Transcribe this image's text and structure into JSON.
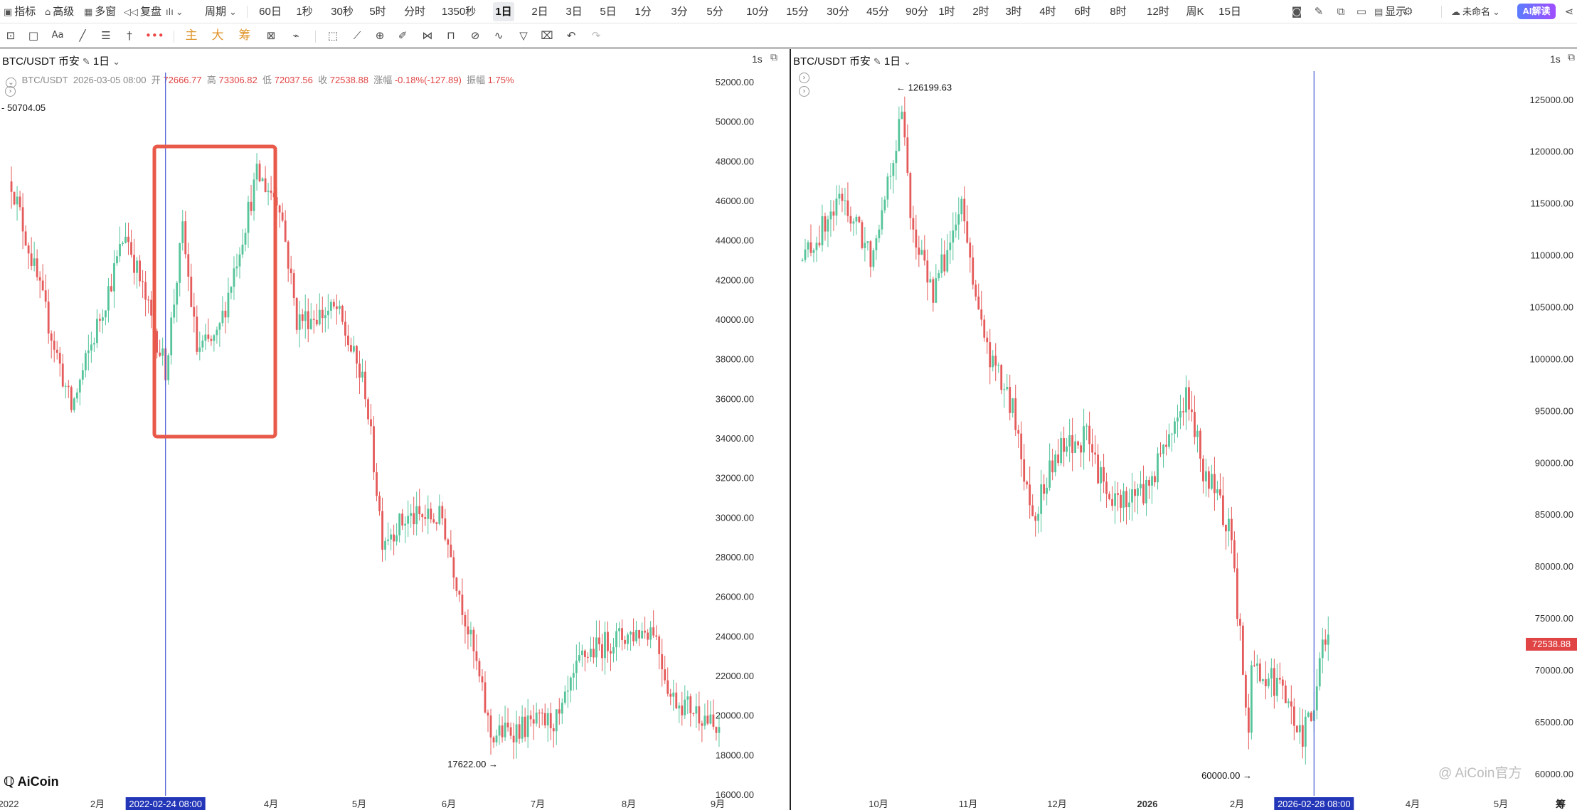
{
  "toolbar": {
    "indicators": "指标",
    "advanced": "高级",
    "multi_window": "多窗",
    "replay": "复盘",
    "period": "周期",
    "intervals": [
      "60日",
      "1秒",
      "30秒",
      "5时",
      "分时",
      "1350秒",
      "1日",
      "2日",
      "3日",
      "5日",
      "1分",
      "3分",
      "5分",
      "10分",
      "15分",
      "30分",
      "45分",
      "90分",
      "1时",
      "2时",
      "3时",
      "4时",
      "6时",
      "8时",
      "12时",
      "周K",
      "15日"
    ],
    "active_interval": "1日",
    "display": "显示",
    "layout_name": "未命名",
    "ai_label": "AI解读"
  },
  "draw_toolbar": {
    "main": "主",
    "large": "大",
    "chips": "筹",
    "text_tool": "Aa"
  },
  "left_chart": {
    "title": "BTC/USDT 币安",
    "interval": "1日",
    "corner_interval": "1s",
    "ohlc": {
      "symbol": "BTC/USDT",
      "datetime": "2026-03-05 08:00",
      "open_label": "开",
      "open": "72666.77",
      "high_label": "高",
      "high": "73306.82",
      "low_label": "低",
      "low": "72037.56",
      "close_label": "收",
      "close": "72538.88",
      "change_label": "涨幅",
      "change": "-0.18%(-127.89)",
      "amplitude_label": "振幅",
      "amplitude": "1.75%"
    },
    "high_marker": "50704.05",
    "low_marker": "17622.00",
    "crosshair_date": "2022-02-24 08:00",
    "year_label": "2022",
    "x_labels": [
      "2月",
      "4月",
      "5月",
      "6月",
      "7月",
      "8月",
      "9月"
    ],
    "y_ticks": [
      "52000.00",
      "50000.00",
      "48000.00",
      "46000.00",
      "44000.00",
      "42000.00",
      "40000.00",
      "38000.00",
      "36000.00",
      "34000.00",
      "32000.00",
      "30000.00",
      "28000.00",
      "26000.00",
      "24000.00",
      "22000.00",
      "20000.00",
      "18000.00",
      "16000.00"
    ],
    "logo": "AiCoin"
  },
  "right_chart": {
    "title": "BTC/USDT 币安",
    "interval": "1日",
    "corner_interval": "1s",
    "high_marker": "126199.63",
    "low_marker": "60000.00",
    "last_price": "72538.88",
    "crosshair_date": "2026-02-28 08:00",
    "x_labels": [
      "10月",
      "11月",
      "12月",
      "2026",
      "2月",
      "4月",
      "5月"
    ],
    "y_ticks": [
      "125000.00",
      "120000.00",
      "115000.00",
      "110000.00",
      "105000.00",
      "100000.00",
      "95000.00",
      "90000.00",
      "85000.00",
      "80000.00",
      "75000.00",
      "70000.00",
      "65000.00",
      "60000.00"
    ],
    "watermark": "@ AiCoin官方",
    "corner_text": "筹 周"
  },
  "chart_data": [
    {
      "type": "candlestick",
      "title": "BTC/USDT 币安",
      "interval": "1日",
      "ylim": [
        16000,
        52000
      ],
      "x_range": [
        "2022-01",
        "2022-09"
      ],
      "path_close": [
        [
          "2022-01-01",
          47000
        ],
        [
          "2022-01-10",
          42000
        ],
        [
          "2022-01-22",
          35500
        ],
        [
          "2022-02-05",
          42000
        ],
        [
          "2022-02-10",
          44500
        ],
        [
          "2022-02-24",
          37500
        ],
        [
          "2022-03-02",
          44500
        ],
        [
          "2022-03-07",
          38500
        ],
        [
          "2022-03-14",
          39000
        ],
        [
          "2022-03-28",
          47300
        ],
        [
          "2022-04-05",
          46000
        ],
        [
          "2022-04-11",
          40000
        ],
        [
          "2022-04-25",
          40500
        ],
        [
          "2022-05-05",
          36500
        ],
        [
          "2022-05-11",
          29000
        ],
        [
          "2022-05-20",
          30000
        ],
        [
          "2022-06-01",
          30000
        ],
        [
          "2022-06-13",
          22500
        ],
        [
          "2022-06-18",
          19000
        ],
        [
          "2022-07-01",
          19500
        ],
        [
          "2022-07-12",
          19800
        ],
        [
          "2022-07-20",
          23000
        ],
        [
          "2022-07-30",
          23800
        ],
        [
          "2022-08-14",
          24500
        ],
        [
          "2022-08-20",
          21000
        ],
        [
          "2022-09-01",
          20000
        ],
        [
          "2022-09-06",
          18900
        ]
      ],
      "annotations": {
        "high": 50704.05,
        "low": 17622.0
      }
    },
    {
      "type": "candlestick",
      "title": "BTC/USDT 币安",
      "interval": "1日",
      "ylim": [
        58000,
        128000
      ],
      "x_range": [
        "2025-09",
        "2026-05"
      ],
      "last_price": 72538.88,
      "path_close": [
        [
          "2025-09-01",
          109500
        ],
        [
          "2025-09-15",
          115500
        ],
        [
          "2025-09-25",
          110000
        ],
        [
          "2025-10-06",
          123500
        ],
        [
          "2025-10-10",
          112000
        ],
        [
          "2025-10-17",
          106500
        ],
        [
          "2025-10-27",
          114500
        ],
        [
          "2025-11-04",
          101500
        ],
        [
          "2025-11-14",
          95000
        ],
        [
          "2025-11-21",
          85000
        ],
        [
          "2025-11-30",
          91000
        ],
        [
          "2025-12-10",
          92500
        ],
        [
          "2025-12-18",
          86000
        ],
        [
          "2025-12-31",
          87500
        ],
        [
          "2026-01-14",
          96500
        ],
        [
          "2026-01-20",
          89500
        ],
        [
          "2026-01-29",
          84000
        ],
        [
          "2026-02-05",
          65000
        ],
        [
          "2026-02-06",
          70500
        ],
        [
          "2026-02-15",
          68500
        ],
        [
          "2026-02-24",
          63500
        ],
        [
          "2026-03-01",
          68000
        ],
        [
          "2026-03-03",
          73500
        ],
        [
          "2026-03-05",
          72538.88
        ]
      ],
      "annotations": {
        "high": 126199.63,
        "low": 60000.0
      }
    }
  ]
}
